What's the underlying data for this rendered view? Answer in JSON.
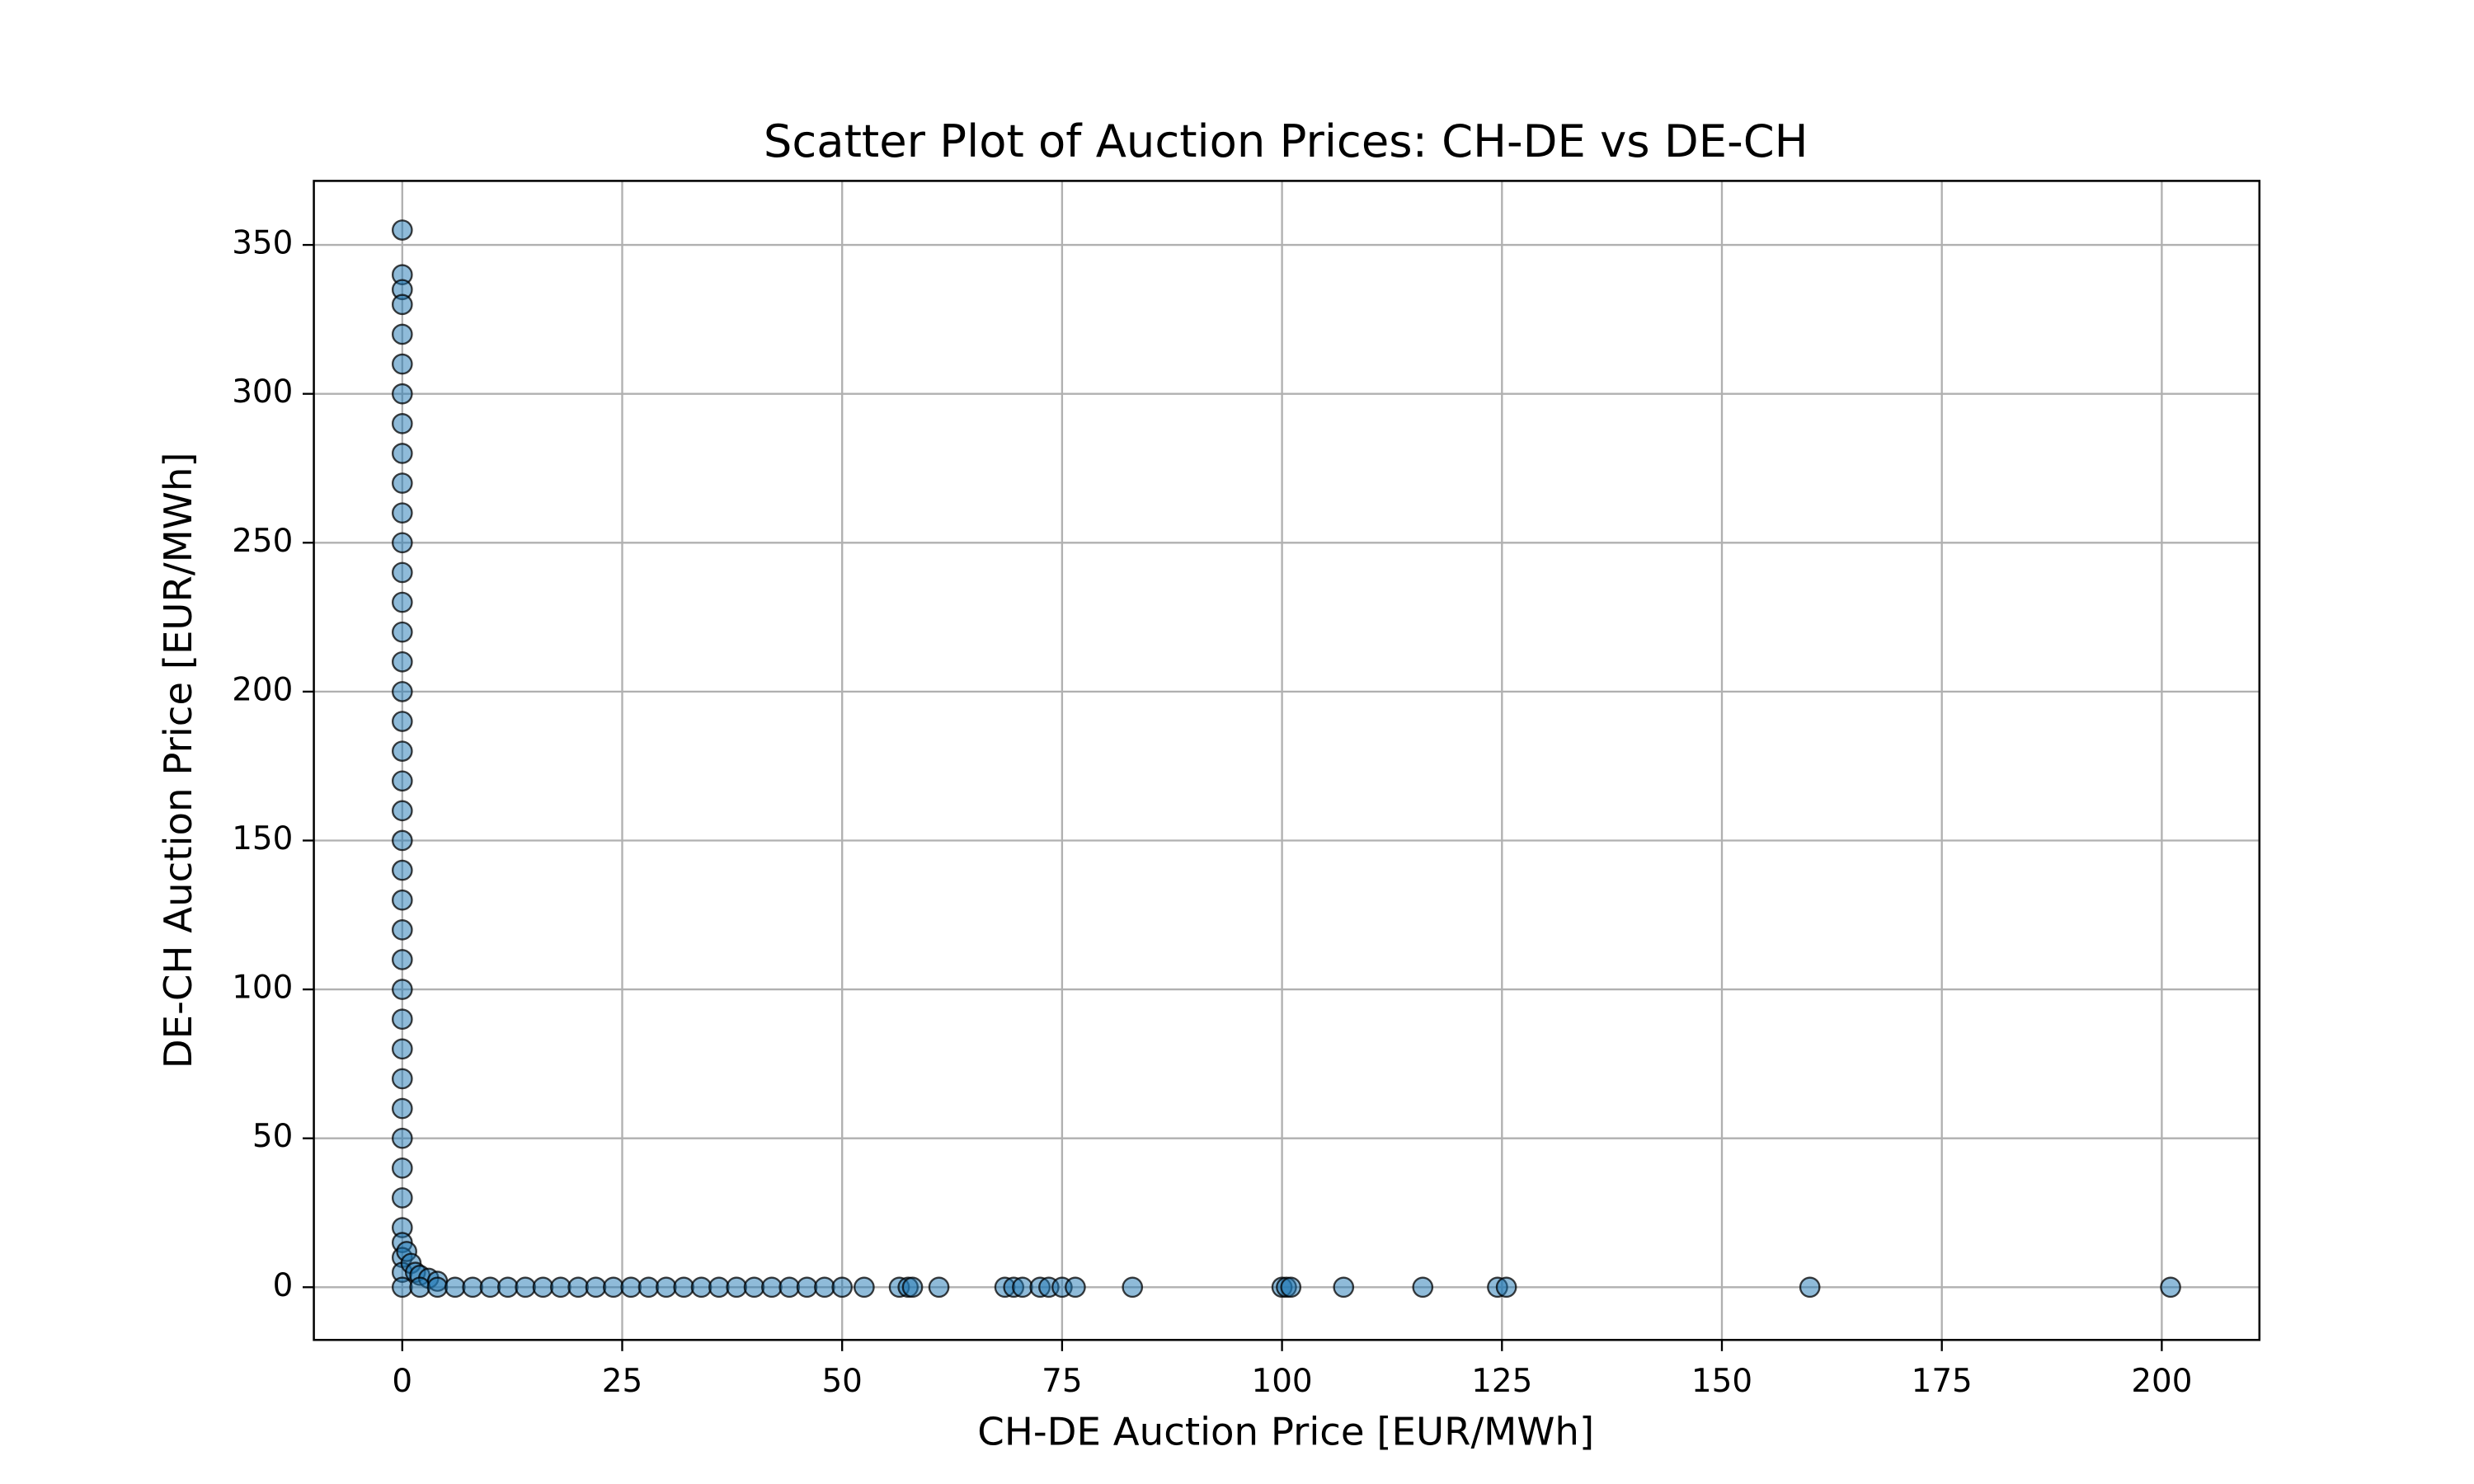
{
  "chart_data": {
    "type": "scatter",
    "title": "Scatter Plot of Auction Prices: CH-DE vs DE-CH",
    "xlabel": "CH-DE Auction Price [EUR/MWh]",
    "ylabel": "DE-CH Auction Price [EUR/MWh]",
    "color": "#1f77b4",
    "edgecolor": "#000000",
    "alpha": 0.5,
    "grid": true,
    "xlim": [
      -10.05,
      211.1
    ],
    "ylim": [
      -17.7,
      371.5
    ],
    "xticks": [
      0,
      25,
      50,
      75,
      100,
      125,
      150,
      175,
      200
    ],
    "yticks": [
      0,
      50,
      100,
      150,
      200,
      250,
      300,
      350
    ],
    "x": [
      0,
      0,
      0,
      0,
      0,
      0,
      0,
      0,
      0,
      0,
      0,
      0,
      0,
      0,
      0,
      0,
      0,
      0,
      0,
      0,
      0,
      0,
      0,
      0,
      0,
      0,
      0,
      0,
      0,
      0,
      0,
      0,
      0,
      0,
      0,
      0,
      0,
      0,
      0.5,
      1,
      1.5,
      2,
      3,
      4,
      0,
      2,
      4,
      6,
      8,
      10,
      12,
      14,
      16,
      18,
      20,
      22,
      24,
      26,
      28,
      30,
      32,
      34,
      36,
      38,
      40,
      42,
      44,
      46,
      48,
      50,
      52.5,
      56.5,
      57.5,
      58,
      61,
      68.5,
      69.5,
      70.5,
      72.5,
      73.5,
      75,
      76.5,
      83,
      100,
      100.5,
      101,
      107,
      116,
      124.5,
      125.5,
      160,
      201
    ],
    "y": [
      355,
      340,
      335,
      330,
      320,
      310,
      300,
      290,
      280,
      270,
      260,
      250,
      240,
      230,
      220,
      210,
      200,
      190,
      180,
      170,
      160,
      150,
      140,
      130,
      120,
      110,
      100,
      90,
      80,
      70,
      60,
      50,
      40,
      30,
      20,
      15,
      10,
      5,
      12,
      8,
      5,
      4,
      3,
      2,
      0,
      0,
      0,
      0,
      0,
      0,
      0,
      0,
      0,
      0,
      0,
      0,
      0,
      0,
      0,
      0,
      0,
      0,
      0,
      0,
      0,
      0,
      0,
      0,
      0,
      0,
      0,
      0,
      0,
      0,
      0,
      0,
      0,
      0,
      0,
      0,
      0,
      0,
      0,
      0,
      0,
      0,
      0,
      0,
      0,
      0,
      0,
      0
    ]
  }
}
